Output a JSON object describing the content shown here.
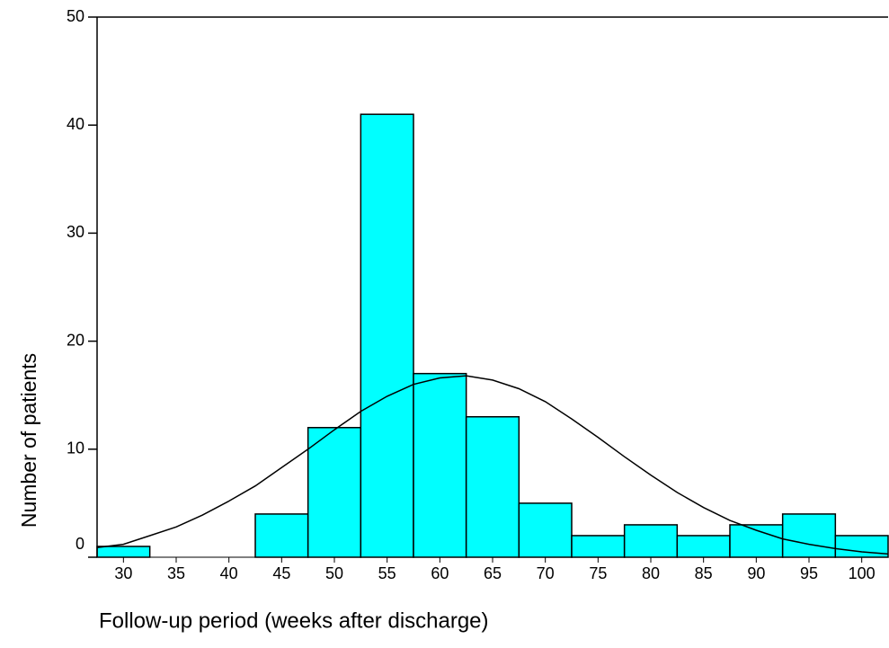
{
  "chart_data": {
    "type": "histogram",
    "x_label": "Follow-up period (weeks after discharge)",
    "y_label": "Number of patients",
    "bins": [
      27.5,
      32.5,
      37.5,
      42.5,
      47.5,
      52.5,
      57.5,
      62.5,
      67.5,
      72.5,
      77.5,
      82.5,
      87.5,
      92.5,
      97.5,
      102.5
    ],
    "values": [
      1,
      0,
      0,
      4,
      12,
      41,
      17,
      13,
      5,
      2,
      3,
      2,
      3,
      4,
      2
    ],
    "color": "#00ffff",
    "curve": {
      "color": "#000000",
      "x": [
        27.5,
        30,
        32.5,
        35,
        37.5,
        40,
        42.5,
        45,
        47.5,
        50,
        52.5,
        55,
        57.5,
        60,
        62.5,
        65,
        67.5,
        70,
        72.5,
        75,
        77.5,
        80,
        82.5,
        85,
        87.5,
        90,
        92.5,
        95,
        97.5,
        100,
        102.5
      ],
      "values": [
        0.9,
        1.2,
        2.0,
        2.8,
        3.9,
        5.2,
        6.6,
        8.3,
        10.0,
        11.8,
        13.5,
        14.9,
        16.0,
        16.6,
        16.8,
        16.4,
        15.6,
        14.4,
        12.8,
        11.1,
        9.3,
        7.6,
        6.0,
        4.6,
        3.4,
        2.5,
        1.7,
        1.2,
        0.8,
        0.5,
        0.3
      ]
    },
    "xlim": [
      27.5,
      102.5
    ],
    "xticks": [
      30,
      35,
      40,
      45,
      50,
      55,
      60,
      65,
      70,
      75,
      80,
      85,
      90,
      95,
      100
    ],
    "ylim": [
      0,
      50
    ],
    "yticks": [
      0,
      10,
      20,
      30,
      40,
      50
    ]
  }
}
